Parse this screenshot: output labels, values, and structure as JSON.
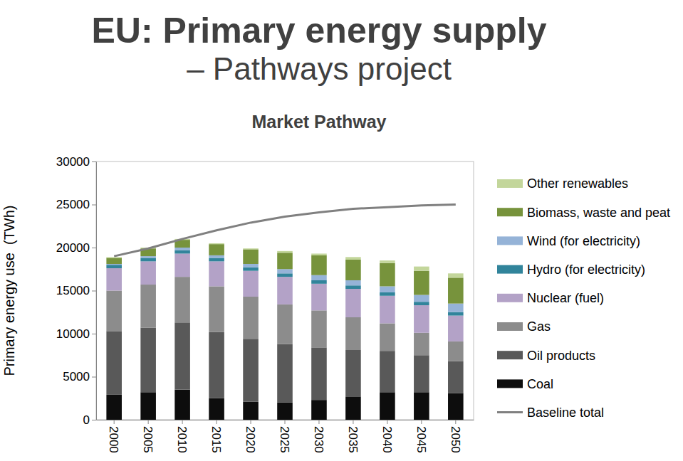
{
  "chart_data": {
    "type": "bar",
    "title": "EU: Primary energy supply",
    "subtitle": "– Pathways project",
    "chart_title": "Market Pathway",
    "y_label": "Primary energy use  (TWh)",
    "categories": [
      "2000",
      "2005",
      "2010",
      "2015",
      "2020",
      "2025",
      "2030",
      "2035",
      "2040",
      "2045",
      "2050"
    ],
    "stacked": true,
    "grid": false,
    "legend": "right",
    "ylim": [
      0,
      30000
    ],
    "yticks": [
      0,
      5000,
      10000,
      15000,
      20000,
      25000,
      30000
    ],
    "series": [
      {
        "name": "Coal",
        "type": "bar",
        "color": "#0d0d0d",
        "values": [
          2900,
          3200,
          3500,
          2500,
          2100,
          2000,
          2300,
          2700,
          3200,
          3200,
          3100
        ]
      },
      {
        "name": "Oil products",
        "type": "bar",
        "color": "#595959",
        "values": [
          7400,
          7500,
          7800,
          7700,
          7300,
          6800,
          6100,
          5400,
          4800,
          4300,
          3700
        ]
      },
      {
        "name": "Gas",
        "type": "bar",
        "color": "#8c8c8c",
        "values": [
          4700,
          5000,
          5300,
          5300,
          4900,
          4600,
          4300,
          3800,
          3200,
          2600,
          2300
        ]
      },
      {
        "name": "Nuclear (fuel)",
        "type": "bar",
        "color": "#b3a2c7",
        "values": [
          2600,
          2700,
          2700,
          2900,
          3000,
          3200,
          3100,
          3300,
          3200,
          3200,
          3000
        ]
      },
      {
        "name": "Hydro (for electricity)",
        "type": "bar",
        "color": "#31849b",
        "values": [
          400,
          400,
          400,
          400,
          400,
          400,
          400,
          400,
          400,
          400,
          400
        ]
      },
      {
        "name": "Wind (for electricity)",
        "type": "bar",
        "color": "#95b3d7",
        "values": [
          100,
          200,
          300,
          300,
          400,
          500,
          600,
          600,
          700,
          800,
          1000
        ]
      },
      {
        "name": "Biomass, waste and peat",
        "type": "bar",
        "color": "#77933c",
        "values": [
          700,
          900,
          900,
          1300,
          1700,
          1900,
          2300,
          2400,
          2700,
          2800,
          3000
        ]
      },
      {
        "name": "Other renewables",
        "type": "bar",
        "color": "#c3d69b",
        "values": [
          100,
          100,
          100,
          100,
          100,
          200,
          200,
          300,
          300,
          500,
          500
        ]
      },
      {
        "name": "Baseline total",
        "type": "line",
        "color": "#808080",
        "values": [
          19000,
          19900,
          21000,
          22000,
          22900,
          23600,
          24100,
          24500,
          24700,
          24900,
          25000
        ]
      }
    ]
  }
}
